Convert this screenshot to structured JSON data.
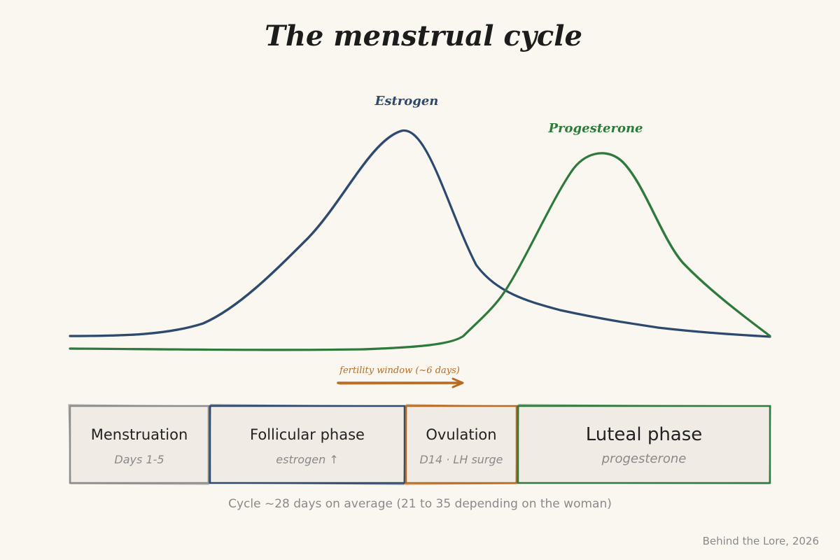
{
  "title": "The menstrual cycle",
  "curves": {
    "estrogen": {
      "label": "Estrogen",
      "color": "#2d4a6e"
    },
    "progesterone": {
      "label": "Progesterone",
      "color": "#2e7a3c"
    }
  },
  "fertility": {
    "label": "fertility window (~6 days)",
    "color": "#b86b22"
  },
  "phases": [
    {
      "name": "Menstruation",
      "sub": "Days 1-5",
      "color": "#8c8c8c"
    },
    {
      "name": "Follicular phase",
      "sub": "estrogen ↑",
      "color": "#2d4a6e"
    },
    {
      "name": "Ovulation",
      "sub": "D14 · LH surge",
      "color": "#b86b22"
    },
    {
      "name": "Luteal phase",
      "sub": "progesterone",
      "color": "#2e7a3c"
    }
  ],
  "footnote": "Cycle ~28 days on average (21 to 35 depending on the woman)",
  "credit": "Behind the Lore, 2026"
}
